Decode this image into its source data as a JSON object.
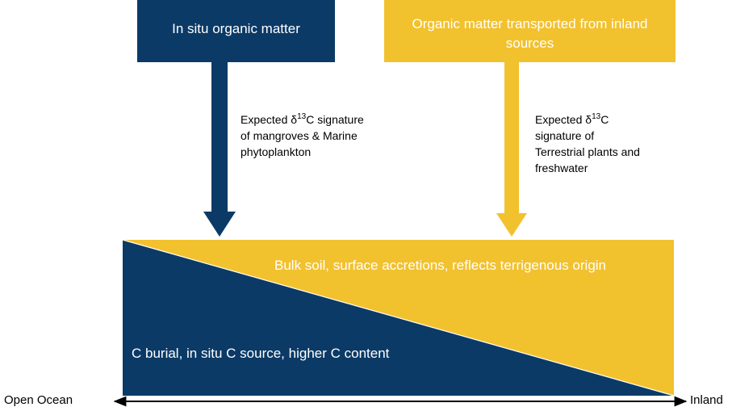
{
  "sources": [
    {
      "title_lines": [
        "In situ organic matter"
      ],
      "signature": {
        "before": "Expected δ",
        "sup": "13",
        "after": "C signature",
        "lines": [
          "of mangroves & Marine",
          "phytoplankton"
        ]
      }
    },
    {
      "title_lines": [
        "Organic matter transported from inland",
        "sources"
      ],
      "signature": {
        "before": "Expected δ",
        "sup": "13",
        "after": "C",
        "lines": [
          "signature of",
          "Terrestrial plants and",
          "freshwater"
        ]
      }
    }
  ],
  "gradient": {
    "upper": "Bulk soil, surface accretions, reflects terrigenous origin",
    "lower": "C burial, in situ C source, higher C content"
  },
  "axis": {
    "left": "Open Ocean",
    "right": "Inland"
  }
}
